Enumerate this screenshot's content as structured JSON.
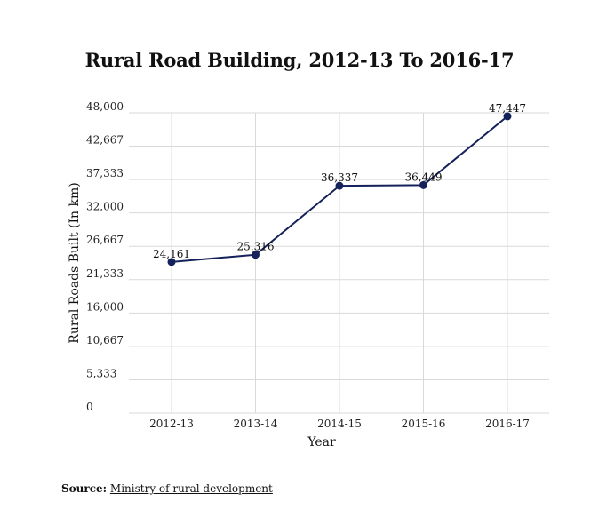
{
  "chart_data": {
    "type": "line",
    "title": "Rural Road Building, 2012-13 To 2016-17",
    "xlabel": "Year",
    "ylabel": "Rural Roads Built (In km)",
    "categories": [
      "2012-13",
      "2013-14",
      "2014-15",
      "2015-16",
      "2016-17"
    ],
    "values": [
      24161,
      25316,
      36337,
      36449,
      47447
    ],
    "value_labels": [
      "24,161",
      "25,316",
      "36,337",
      "36,449",
      "47,447"
    ],
    "ylim": [
      0,
      48000
    ],
    "yticks": [
      0,
      5333,
      10667,
      16000,
      21333,
      26667,
      32000,
      37333,
      42667,
      48000
    ],
    "ytick_labels": [
      "0",
      "5,333",
      "10,667",
      "16,000",
      "21,333",
      "26,667",
      "32,000",
      "37,333",
      "42,667",
      "48,000"
    ],
    "grid": true,
    "line_color": "#14215a"
  },
  "source": {
    "prefix": "Source:",
    "link_text": "Ministry of rural development"
  }
}
